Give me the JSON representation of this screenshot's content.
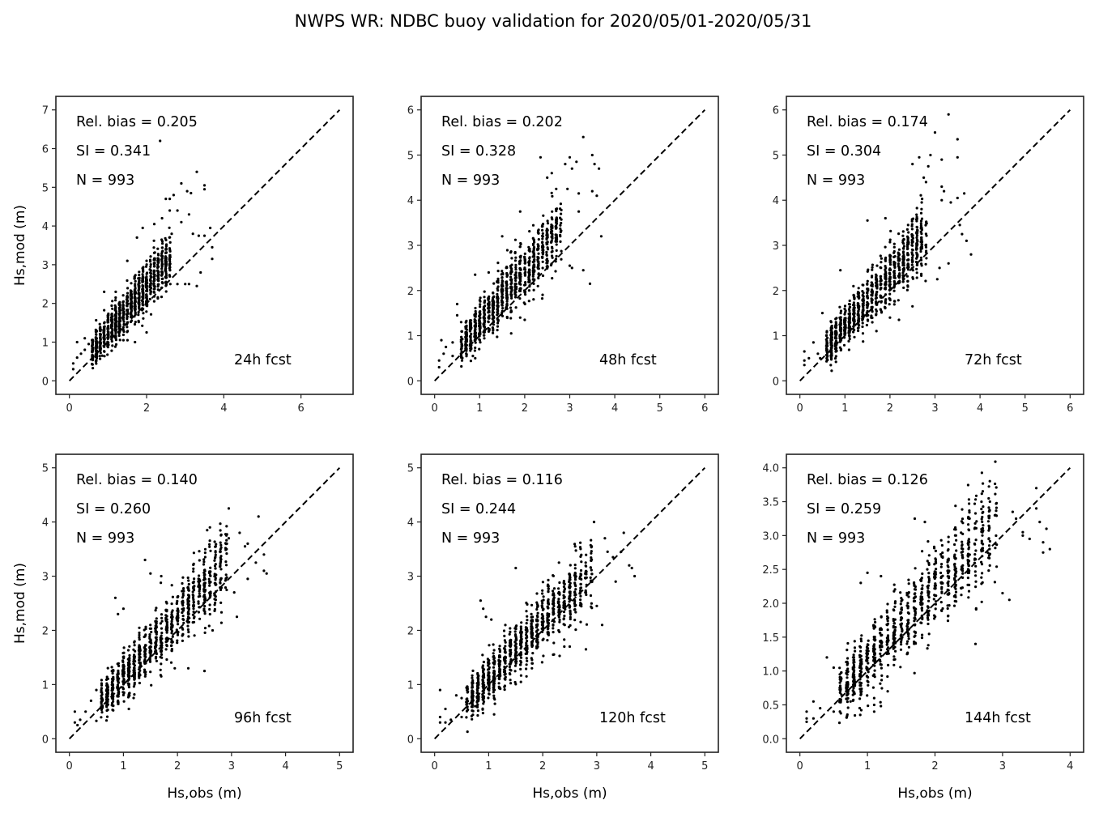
{
  "figure": {
    "title": "NWPS WR: NDBC buoy validation for 2020/05/01-2020/05/31",
    "colors": {
      "points": "#000000",
      "line": "#000000",
      "frame": "#222222"
    }
  },
  "chart_data": [
    {
      "type": "scatter",
      "panel": "24h fcst",
      "forecast_label": "24h fcst",
      "stats": {
        "rel_bias": "Rel. bias =  0.205",
        "si": "SI =  0.341",
        "n": "N = 993"
      },
      "xlabel": "",
      "ylabel": "Hs,mod (m)",
      "xlim": [
        -0.35,
        7.35
      ],
      "ylim": [
        -0.35,
        7.35
      ],
      "xticks": [
        "0",
        "2",
        "4",
        "6"
      ],
      "xtick_values": [
        0,
        2,
        4,
        6
      ],
      "yticks": [
        "0",
        "1",
        "2",
        "3",
        "4",
        "5",
        "6",
        "7"
      ],
      "ytick_values": [
        0,
        1,
        2,
        3,
        4,
        5,
        6,
        7
      ],
      "reference_line": {
        "from": [
          0,
          0
        ],
        "to": [
          7,
          7
        ],
        "style": "dashed"
      },
      "cloud": {
        "count": 930,
        "x_range": [
          0.6,
          2.6
        ],
        "slope": 1.22,
        "spread": 0.3,
        "seed": 11
      },
      "outliers": [
        [
          0.1,
          0.3
        ],
        [
          0.1,
          0.45
        ],
        [
          0.2,
          1.0
        ],
        [
          0.2,
          0.6
        ],
        [
          0.3,
          0.7
        ],
        [
          0.4,
          1.1
        ],
        [
          0.4,
          0.8
        ],
        [
          0.5,
          0.95
        ],
        [
          2.35,
          6.2
        ],
        [
          3.3,
          5.4
        ],
        [
          2.9,
          5.1
        ],
        [
          3.5,
          5.05
        ],
        [
          3.05,
          4.9
        ],
        [
          3.15,
          4.85
        ],
        [
          3.5,
          4.95
        ],
        [
          2.5,
          4.7
        ],
        [
          2.6,
          4.7
        ],
        [
          2.7,
          4.8
        ],
        [
          2.6,
          4.4
        ],
        [
          2.8,
          4.4
        ],
        [
          2.9,
          4.1
        ],
        [
          3.1,
          4.3
        ],
        [
          2.2,
          4.05
        ],
        [
          1.9,
          3.95
        ],
        [
          1.75,
          3.7
        ],
        [
          3.35,
          3.75
        ],
        [
          3.5,
          3.75
        ],
        [
          3.65,
          3.95
        ],
        [
          3.7,
          3.45
        ],
        [
          3.7,
          3.15
        ],
        [
          3.2,
          3.8
        ],
        [
          3.4,
          2.8
        ],
        [
          3.3,
          2.45
        ],
        [
          3.0,
          2.5
        ],
        [
          2.8,
          2.5
        ],
        [
          3.1,
          2.5
        ],
        [
          2.0,
          1.25
        ],
        [
          1.7,
          1.0
        ],
        [
          1.4,
          1.05
        ],
        [
          0.85,
          0.65
        ],
        [
          1.5,
          3.1
        ],
        [
          2.4,
          4.2
        ],
        [
          2.65,
          3.8
        ],
        [
          1.2,
          2.3
        ],
        [
          0.9,
          2.3
        ]
      ]
    },
    {
      "type": "scatter",
      "panel": "48h fcst",
      "forecast_label": "48h fcst",
      "stats": {
        "rel_bias": "Rel. bias =  0.202",
        "si": "SI =  0.328",
        "n": "N = 993"
      },
      "xlabel": "",
      "ylabel": "",
      "xlim": [
        -0.3,
        6.3
      ],
      "ylim": [
        -0.3,
        6.3
      ],
      "xticks": [
        "0",
        "1",
        "2",
        "3",
        "4",
        "5",
        "6"
      ],
      "xtick_values": [
        0,
        1,
        2,
        3,
        4,
        5,
        6
      ],
      "yticks": [
        "0",
        "1",
        "2",
        "3",
        "4",
        "5",
        "6"
      ],
      "ytick_values": [
        0,
        1,
        2,
        3,
        4,
        5,
        6
      ],
      "reference_line": {
        "from": [
          0,
          0
        ],
        "to": [
          6,
          6
        ],
        "style": "dashed"
      },
      "cloud": {
        "count": 930,
        "x_range": [
          0.6,
          2.8
        ],
        "slope": 1.2,
        "spread": 0.3,
        "seed": 23
      },
      "outliers": [
        [
          0.1,
          0.3
        ],
        [
          0.1,
          0.45
        ],
        [
          0.15,
          0.9
        ],
        [
          0.2,
          0.6
        ],
        [
          0.25,
          0.75
        ],
        [
          0.4,
          0.85
        ],
        [
          0.4,
          0.55
        ],
        [
          0.5,
          1.7
        ],
        [
          0.5,
          1.45
        ],
        [
          3.3,
          5.4
        ],
        [
          2.35,
          4.95
        ],
        [
          3.0,
          4.95
        ],
        [
          3.15,
          4.85
        ],
        [
          3.5,
          5.0
        ],
        [
          3.55,
          4.8
        ],
        [
          3.65,
          4.7
        ],
        [
          2.9,
          4.8
        ],
        [
          3.05,
          4.7
        ],
        [
          2.5,
          4.5
        ],
        [
          2.6,
          4.6
        ],
        [
          2.7,
          4.25
        ],
        [
          2.95,
          4.25
        ],
        [
          3.2,
          4.15
        ],
        [
          3.5,
          4.2
        ],
        [
          3.6,
          4.1
        ],
        [
          3.7,
          3.2
        ],
        [
          3.3,
          2.45
        ],
        [
          3.45,
          2.15
        ],
        [
          3.0,
          2.55
        ],
        [
          3.05,
          2.5
        ],
        [
          1.7,
          1.05
        ],
        [
          1.9,
          1.4
        ],
        [
          2.0,
          1.35
        ],
        [
          0.85,
          0.55
        ],
        [
          1.5,
          3.2
        ],
        [
          1.9,
          3.75
        ],
        [
          0.9,
          2.35
        ],
        [
          1.2,
          2.4
        ],
        [
          3.2,
          3.75
        ]
      ]
    },
    {
      "type": "scatter",
      "panel": "72h fcst",
      "forecast_label": "72h fcst",
      "stats": {
        "rel_bias": "Rel. bias =  0.174",
        "si": "SI =  0.304",
        "n": "N = 993"
      },
      "xlabel": "",
      "ylabel": "",
      "xlim": [
        -0.3,
        6.3
      ],
      "ylim": [
        -0.3,
        6.3
      ],
      "xticks": [
        "0",
        "1",
        "2",
        "3",
        "4",
        "5",
        "6"
      ],
      "xtick_values": [
        0,
        1,
        2,
        3,
        4,
        5,
        6
      ],
      "yticks": [
        "0",
        "1",
        "2",
        "3",
        "4",
        "5",
        "6"
      ],
      "ytick_values": [
        0,
        1,
        2,
        3,
        4,
        5,
        6
      ],
      "reference_line": {
        "from": [
          0,
          0
        ],
        "to": [
          6,
          6
        ],
        "style": "dashed"
      },
      "cloud": {
        "count": 930,
        "x_range": [
          0.6,
          2.8
        ],
        "slope": 1.15,
        "spread": 0.3,
        "seed": 37
      },
      "outliers": [
        [
          0.1,
          0.65
        ],
        [
          0.1,
          0.35
        ],
        [
          0.1,
          0.45
        ],
        [
          0.2,
          0.5
        ],
        [
          0.3,
          0.85
        ],
        [
          0.4,
          0.6
        ],
        [
          0.45,
          0.5
        ],
        [
          0.5,
          1.5
        ],
        [
          3.3,
          5.9
        ],
        [
          3.0,
          5.5
        ],
        [
          3.5,
          5.35
        ],
        [
          3.5,
          4.95
        ],
        [
          2.65,
          4.95
        ],
        [
          2.9,
          5.0
        ],
        [
          3.15,
          4.9
        ],
        [
          2.5,
          4.8
        ],
        [
          2.85,
          4.75
        ],
        [
          2.75,
          4.5
        ],
        [
          2.8,
          4.4
        ],
        [
          3.15,
          4.3
        ],
        [
          3.2,
          4.2
        ],
        [
          3.65,
          4.15
        ],
        [
          3.5,
          4.05
        ],
        [
          3.15,
          4.0
        ],
        [
          3.35,
          3.95
        ],
        [
          3.55,
          3.45
        ],
        [
          3.6,
          3.25
        ],
        [
          3.7,
          3.1
        ],
        [
          3.8,
          2.8
        ],
        [
          3.3,
          2.6
        ],
        [
          3.05,
          2.25
        ],
        [
          3.1,
          2.5
        ],
        [
          1.5,
          3.55
        ],
        [
          1.9,
          3.6
        ],
        [
          2.5,
          1.65
        ],
        [
          2.2,
          1.35
        ],
        [
          1.7,
          1.1
        ],
        [
          2.0,
          1.4
        ],
        [
          0.9,
          2.45
        ],
        [
          1.4,
          1.05
        ]
      ]
    },
    {
      "type": "scatter",
      "panel": "96h fcst",
      "forecast_label": "96h fcst",
      "stats": {
        "rel_bias": "Rel. bias =  0.140",
        "si": "SI =  0.260",
        "n": "N = 993"
      },
      "xlabel": "Hs,obs (m)",
      "ylabel": "Hs,mod (m)",
      "xlim": [
        -0.25,
        5.25
      ],
      "ylim": [
        -0.25,
        5.25
      ],
      "xticks": [
        "0",
        "1",
        "2",
        "3",
        "4",
        "5"
      ],
      "xtick_values": [
        0,
        1,
        2,
        3,
        4,
        5
      ],
      "yticks": [
        "0",
        "1",
        "2",
        "3",
        "4",
        "5"
      ],
      "ytick_values": [
        0,
        1,
        2,
        3,
        4,
        5
      ],
      "reference_line": {
        "from": [
          0,
          0
        ],
        "to": [
          5,
          5
        ],
        "style": "dashed"
      },
      "cloud": {
        "count": 930,
        "x_range": [
          0.6,
          2.9
        ],
        "slope": 1.1,
        "spread": 0.28,
        "seed": 41
      },
      "outliers": [
        [
          0.1,
          0.5
        ],
        [
          0.1,
          0.3
        ],
        [
          0.15,
          0.25
        ],
        [
          0.2,
          0.35
        ],
        [
          0.3,
          0.5
        ],
        [
          0.4,
          0.7
        ],
        [
          0.5,
          0.33
        ],
        [
          0.5,
          0.9
        ],
        [
          2.95,
          4.25
        ],
        [
          3.5,
          4.1
        ],
        [
          2.6,
          3.9
        ],
        [
          2.55,
          3.85
        ],
        [
          3.15,
          3.8
        ],
        [
          2.95,
          3.7
        ],
        [
          3.3,
          3.6
        ],
        [
          3.25,
          3.55
        ],
        [
          3.6,
          3.4
        ],
        [
          3.45,
          3.25
        ],
        [
          3.65,
          3.05
        ],
        [
          3.6,
          3.1
        ],
        [
          3.3,
          2.95
        ],
        [
          3.05,
          2.7
        ],
        [
          3.1,
          2.25
        ],
        [
          2.5,
          1.25
        ],
        [
          2.2,
          1.3
        ],
        [
          1.95,
          1.3
        ],
        [
          1.7,
          1.15
        ],
        [
          1.1,
          0.55
        ],
        [
          0.9,
          0.7
        ],
        [
          1.4,
          3.3
        ],
        [
          0.85,
          2.6
        ],
        [
          0.9,
          2.3
        ],
        [
          1.0,
          2.4
        ],
        [
          1.5,
          3.05
        ],
        [
          1.7,
          3.0
        ],
        [
          2.65,
          2.0
        ]
      ]
    },
    {
      "type": "scatter",
      "panel": "120h fcst",
      "forecast_label": "120h fcst",
      "stats": {
        "rel_bias": "Rel. bias =  0.116",
        "si": "SI =  0.244",
        "n": "N = 993"
      },
      "xlabel": "Hs,obs (m)",
      "ylabel": "",
      "xlim": [
        -0.25,
        5.25
      ],
      "ylim": [
        -0.25,
        5.25
      ],
      "xticks": [
        "0",
        "1",
        "2",
        "3",
        "4",
        "5"
      ],
      "xtick_values": [
        0,
        1,
        2,
        3,
        4,
        5
      ],
      "yticks": [
        "0",
        "1",
        "2",
        "3",
        "4",
        "5"
      ],
      "ytick_values": [
        0,
        1,
        2,
        3,
        4,
        5
      ],
      "reference_line": {
        "from": [
          0,
          0
        ],
        "to": [
          5,
          5
        ],
        "style": "dashed"
      },
      "cloud": {
        "count": 930,
        "x_range": [
          0.6,
          2.9
        ],
        "slope": 1.05,
        "spread": 0.28,
        "seed": 53
      },
      "outliers": [
        [
          0.1,
          0.9
        ],
        [
          0.1,
          0.4
        ],
        [
          0.1,
          0.3
        ],
        [
          0.2,
          0.55
        ],
        [
          0.2,
          0.3
        ],
        [
          0.3,
          0.35
        ],
        [
          0.4,
          0.8
        ],
        [
          0.5,
          0.4
        ],
        [
          0.5,
          0.75
        ],
        [
          2.95,
          4.0
        ],
        [
          3.5,
          3.8
        ],
        [
          3.15,
          3.7
        ],
        [
          3.3,
          3.35
        ],
        [
          3.2,
          3.45
        ],
        [
          3.45,
          3.45
        ],
        [
          3.6,
          3.2
        ],
        [
          3.65,
          3.15
        ],
        [
          3.7,
          3.0
        ],
        [
          3.35,
          2.9
        ],
        [
          3.0,
          2.45
        ],
        [
          3.1,
          2.1
        ],
        [
          2.8,
          1.65
        ],
        [
          2.4,
          1.7
        ],
        [
          2.5,
          1.7
        ],
        [
          1.8,
          1.3
        ],
        [
          1.7,
          1.15
        ],
        [
          1.1,
          0.45
        ],
        [
          1.1,
          0.75
        ],
        [
          0.75,
          0.6
        ],
        [
          0.85,
          2.55
        ],
        [
          0.9,
          2.4
        ],
        [
          0.95,
          2.25
        ],
        [
          1.05,
          2.2
        ],
        [
          1.5,
          3.15
        ],
        [
          2.6,
          3.55
        ],
        [
          2.3,
          3.25
        ]
      ]
    },
    {
      "type": "scatter",
      "panel": "144h fcst",
      "forecast_label": "144h fcst",
      "stats": {
        "rel_bias": "Rel. bias =  0.126",
        "si": "SI =  0.259",
        "n": "N = 993"
      },
      "xlabel": "Hs,obs (m)",
      "ylabel": "",
      "xlim": [
        -0.2,
        4.2
      ],
      "ylim": [
        -0.2,
        4.2
      ],
      "xticks": [
        "0",
        "1",
        "2",
        "3",
        "4"
      ],
      "xtick_values": [
        0,
        1,
        2,
        3,
        4
      ],
      "yticks": [
        "0.0",
        "0.5",
        "1.0",
        "1.5",
        "2.0",
        "2.5",
        "3.0",
        "3.5",
        "4.0"
      ],
      "ytick_values": [
        0,
        0.5,
        1,
        1.5,
        2,
        2.5,
        3,
        3.5,
        4
      ],
      "reference_line": {
        "from": [
          0,
          0
        ],
        "to": [
          4,
          4
        ],
        "style": "dashed"
      },
      "cloud": {
        "count": 930,
        "x_range": [
          0.6,
          2.9
        ],
        "slope": 1.08,
        "spread": 0.3,
        "seed": 67
      },
      "outliers": [
        [
          0.1,
          0.4
        ],
        [
          0.1,
          0.3
        ],
        [
          0.1,
          0.25
        ],
        [
          0.2,
          0.55
        ],
        [
          0.2,
          0.3
        ],
        [
          0.3,
          0.45
        ],
        [
          0.4,
          1.2
        ],
        [
          0.5,
          1.05
        ],
        [
          0.5,
          0.4
        ],
        [
          3.5,
          3.7
        ],
        [
          3.5,
          3.4
        ],
        [
          3.15,
          3.35
        ],
        [
          3.55,
          3.2
        ],
        [
          3.65,
          3.1
        ],
        [
          3.2,
          3.25
        ],
        [
          3.3,
          3.0
        ],
        [
          3.3,
          3.05
        ],
        [
          3.4,
          2.95
        ],
        [
          3.6,
          2.9
        ],
        [
          3.6,
          2.75
        ],
        [
          3.7,
          2.8
        ],
        [
          3.1,
          2.05
        ],
        [
          3.0,
          2.15
        ],
        [
          2.6,
          1.4
        ],
        [
          1.3,
          0.7
        ],
        [
          1.1,
          0.6
        ],
        [
          1.1,
          0.5
        ],
        [
          1.1,
          0.4
        ],
        [
          0.9,
          0.7
        ],
        [
          0.75,
          0.55
        ],
        [
          1.7,
          3.25
        ],
        [
          1.85,
          3.2
        ],
        [
          1.2,
          2.4
        ],
        [
          0.9,
          2.3
        ],
        [
          1.0,
          2.45
        ]
      ]
    }
  ]
}
